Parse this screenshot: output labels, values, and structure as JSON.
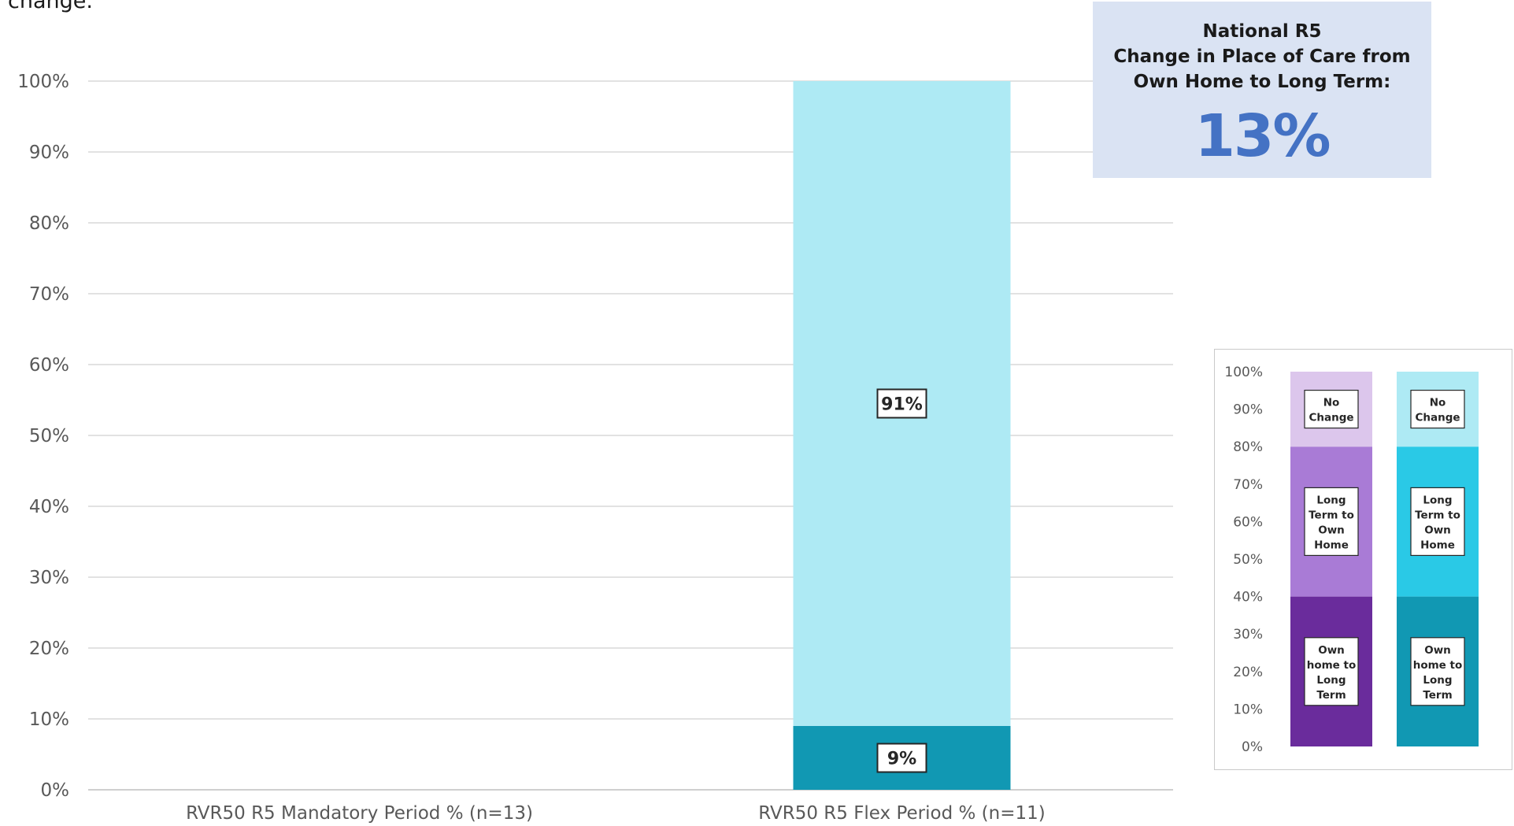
{
  "intro_text": "change.",
  "callout": {
    "title_line1": "National R5",
    "title_line2": "Change in Place of Care from",
    "title_line3": "Own Home to Long Term:",
    "value": "13%",
    "accent_color": "#4472c4",
    "background_color": "#dae3f3"
  },
  "chart_data": [
    {
      "type": "bar",
      "stacked": true,
      "categories": [
        "RVR50 R5 Mandatory Period % (n=13)",
        "RVR50 R5 Flex Period % (n=11)"
      ],
      "series": [
        {
          "key": "own_to_long",
          "color": "#1198b3",
          "values": [
            0,
            9
          ]
        },
        {
          "key": "no_change",
          "color": "#aeeaf4",
          "values": [
            0,
            91
          ]
        }
      ],
      "data_labels": [
        [
          "",
          ""
        ],
        [
          "9%",
          "91%"
        ]
      ],
      "ylim": [
        0,
        100
      ],
      "yticks": [
        "0%",
        "10%",
        "20%",
        "30%",
        "40%",
        "50%",
        "60%",
        "70%",
        "80%",
        "90%",
        "100%"
      ],
      "grid": true,
      "xlabel": "",
      "ylabel": ""
    },
    {
      "type": "bar",
      "stacked": true,
      "role": "legend-key",
      "ylim": [
        0,
        100
      ],
      "yticks": [
        "0%",
        "10%",
        "20%",
        "30%",
        "40%",
        "50%",
        "60%",
        "70%",
        "80%",
        "90%",
        "100%"
      ],
      "segments": [
        {
          "name": "Own home to Long Term",
          "lines": [
            "Own",
            "home to",
            "Long",
            "Term"
          ],
          "values": [
            40,
            40
          ]
        },
        {
          "name": "Long Term to Own Home",
          "lines": [
            "Long",
            "Term to",
            "Own",
            "Home"
          ],
          "values": [
            40,
            40
          ]
        },
        {
          "name": "No Change",
          "lines": [
            "No",
            "Change"
          ],
          "values": [
            20,
            20
          ]
        }
      ],
      "column_colors": [
        [
          "#6a2c9c",
          "#a97bd6",
          "#dcc6ec"
        ],
        [
          "#1198b3",
          "#2ac9e6",
          "#aeeaf4"
        ]
      ]
    }
  ]
}
